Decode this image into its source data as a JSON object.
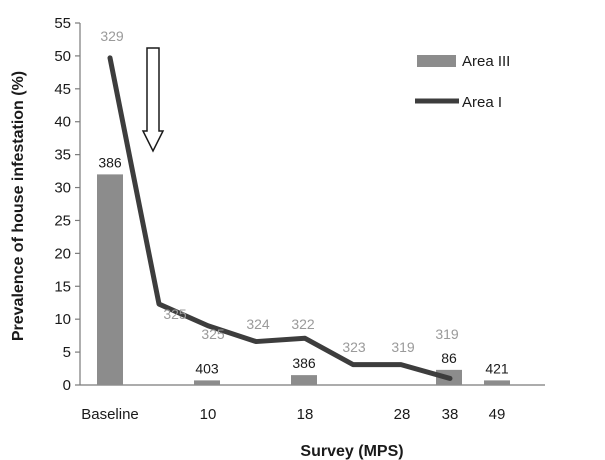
{
  "chart_data": {
    "type": "bar",
    "xlabel": "Survey (MPS)",
    "ylabel": "Prevalence of house infestation (%)",
    "ylim": [
      0,
      55
    ],
    "yticks": [
      "0",
      "5",
      "10",
      "15",
      "20",
      "25",
      "30",
      "35",
      "40",
      "45",
      "50",
      "55"
    ],
    "grid": false,
    "legend_position": "top-right",
    "x_tick_labels": [
      "Baseline",
      "10",
      "18",
      "28",
      "38",
      "49"
    ],
    "series": [
      {
        "name": "Area III",
        "kind": "bar",
        "color": "#8c8c8c",
        "points": [
          {
            "x": "Baseline",
            "value": 32,
            "label": "386"
          },
          {
            "x": "10",
            "value": 0.7,
            "label": "403"
          },
          {
            "x": "18",
            "value": 1.5,
            "label": "386"
          },
          {
            "x": "38",
            "value": 2.3,
            "label": "86"
          },
          {
            "x": "49",
            "value": 0.7,
            "label": "421"
          }
        ]
      },
      {
        "name": "Area I",
        "kind": "line",
        "color": "#3d3d3d",
        "points": [
          {
            "value": 49.7,
            "label": "329"
          },
          {
            "value": 12.3,
            "label": "325"
          },
          {
            "value": 9.0,
            "label": "325"
          },
          {
            "value": 6.6,
            "label": "324"
          },
          {
            "value": 7.1,
            "label": "322"
          },
          {
            "value": 3.1,
            "label": "323"
          },
          {
            "value": 3.1,
            "label": "319"
          },
          {
            "value": 1.0,
            "label": "319"
          }
        ]
      }
    ],
    "annotation": "intervention-arrow"
  }
}
